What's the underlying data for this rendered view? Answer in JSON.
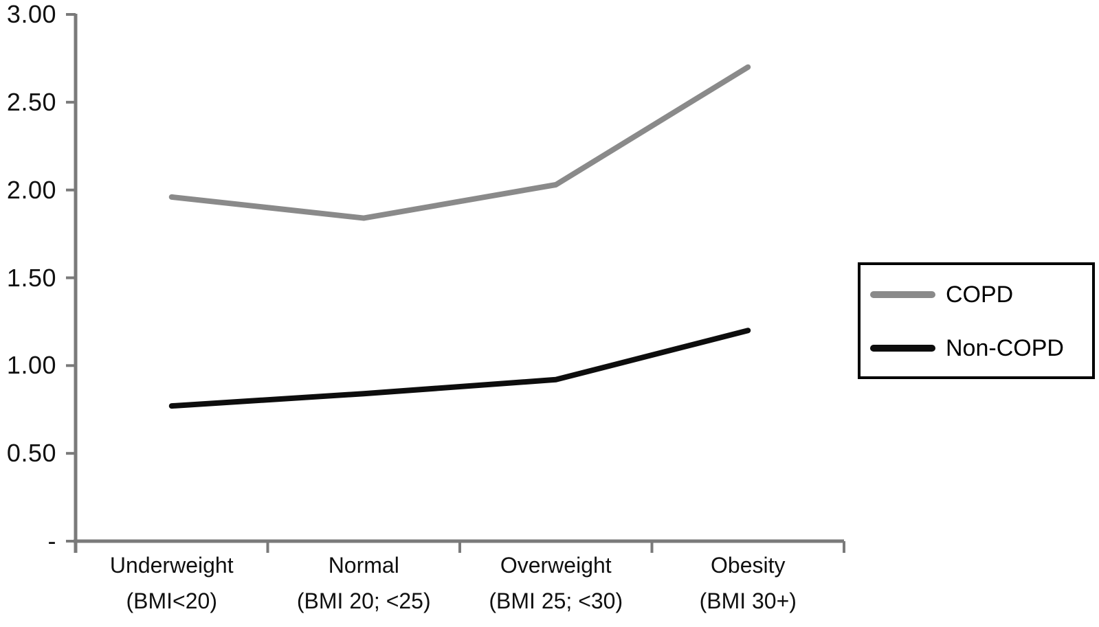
{
  "chart_data": {
    "type": "line",
    "title": "",
    "xlabel": "",
    "ylabel": "",
    "grid": false,
    "legend_position": "right",
    "axis_color": "#7a7a7a",
    "text_color": "#101010",
    "background_color": "#ffffff",
    "categories": [
      {
        "label": "Underweight",
        "sublabel": "(BMI<20)"
      },
      {
        "label": "Normal",
        "sublabel": "(BMI 20; <25)"
      },
      {
        "label": "Overweight",
        "sublabel": "(BMI 25; <30)"
      },
      {
        "label": "Obesity",
        "sublabel": "(BMI 30+)"
      }
    ],
    "series": [
      {
        "name": "COPD",
        "color": "#8a8a8a",
        "values": [
          1.96,
          1.84,
          2.03,
          2.7
        ]
      },
      {
        "name": "Non-COPD",
        "color": "#0d0d0d",
        "values": [
          0.77,
          0.84,
          0.92,
          1.2
        ]
      }
    ],
    "y_axis": {
      "ylim": [
        0,
        3
      ],
      "ticks": [
        {
          "value": 0,
          "label": "-"
        },
        {
          "value": 0.5,
          "label": "0.50"
        },
        {
          "value": 1.0,
          "label": "1.00"
        },
        {
          "value": 1.5,
          "label": "1.50"
        },
        {
          "value": 2.0,
          "label": "2.00"
        },
        {
          "value": 2.5,
          "label": "2.50"
        },
        {
          "value": 3.0,
          "label": "3.00"
        }
      ]
    }
  }
}
